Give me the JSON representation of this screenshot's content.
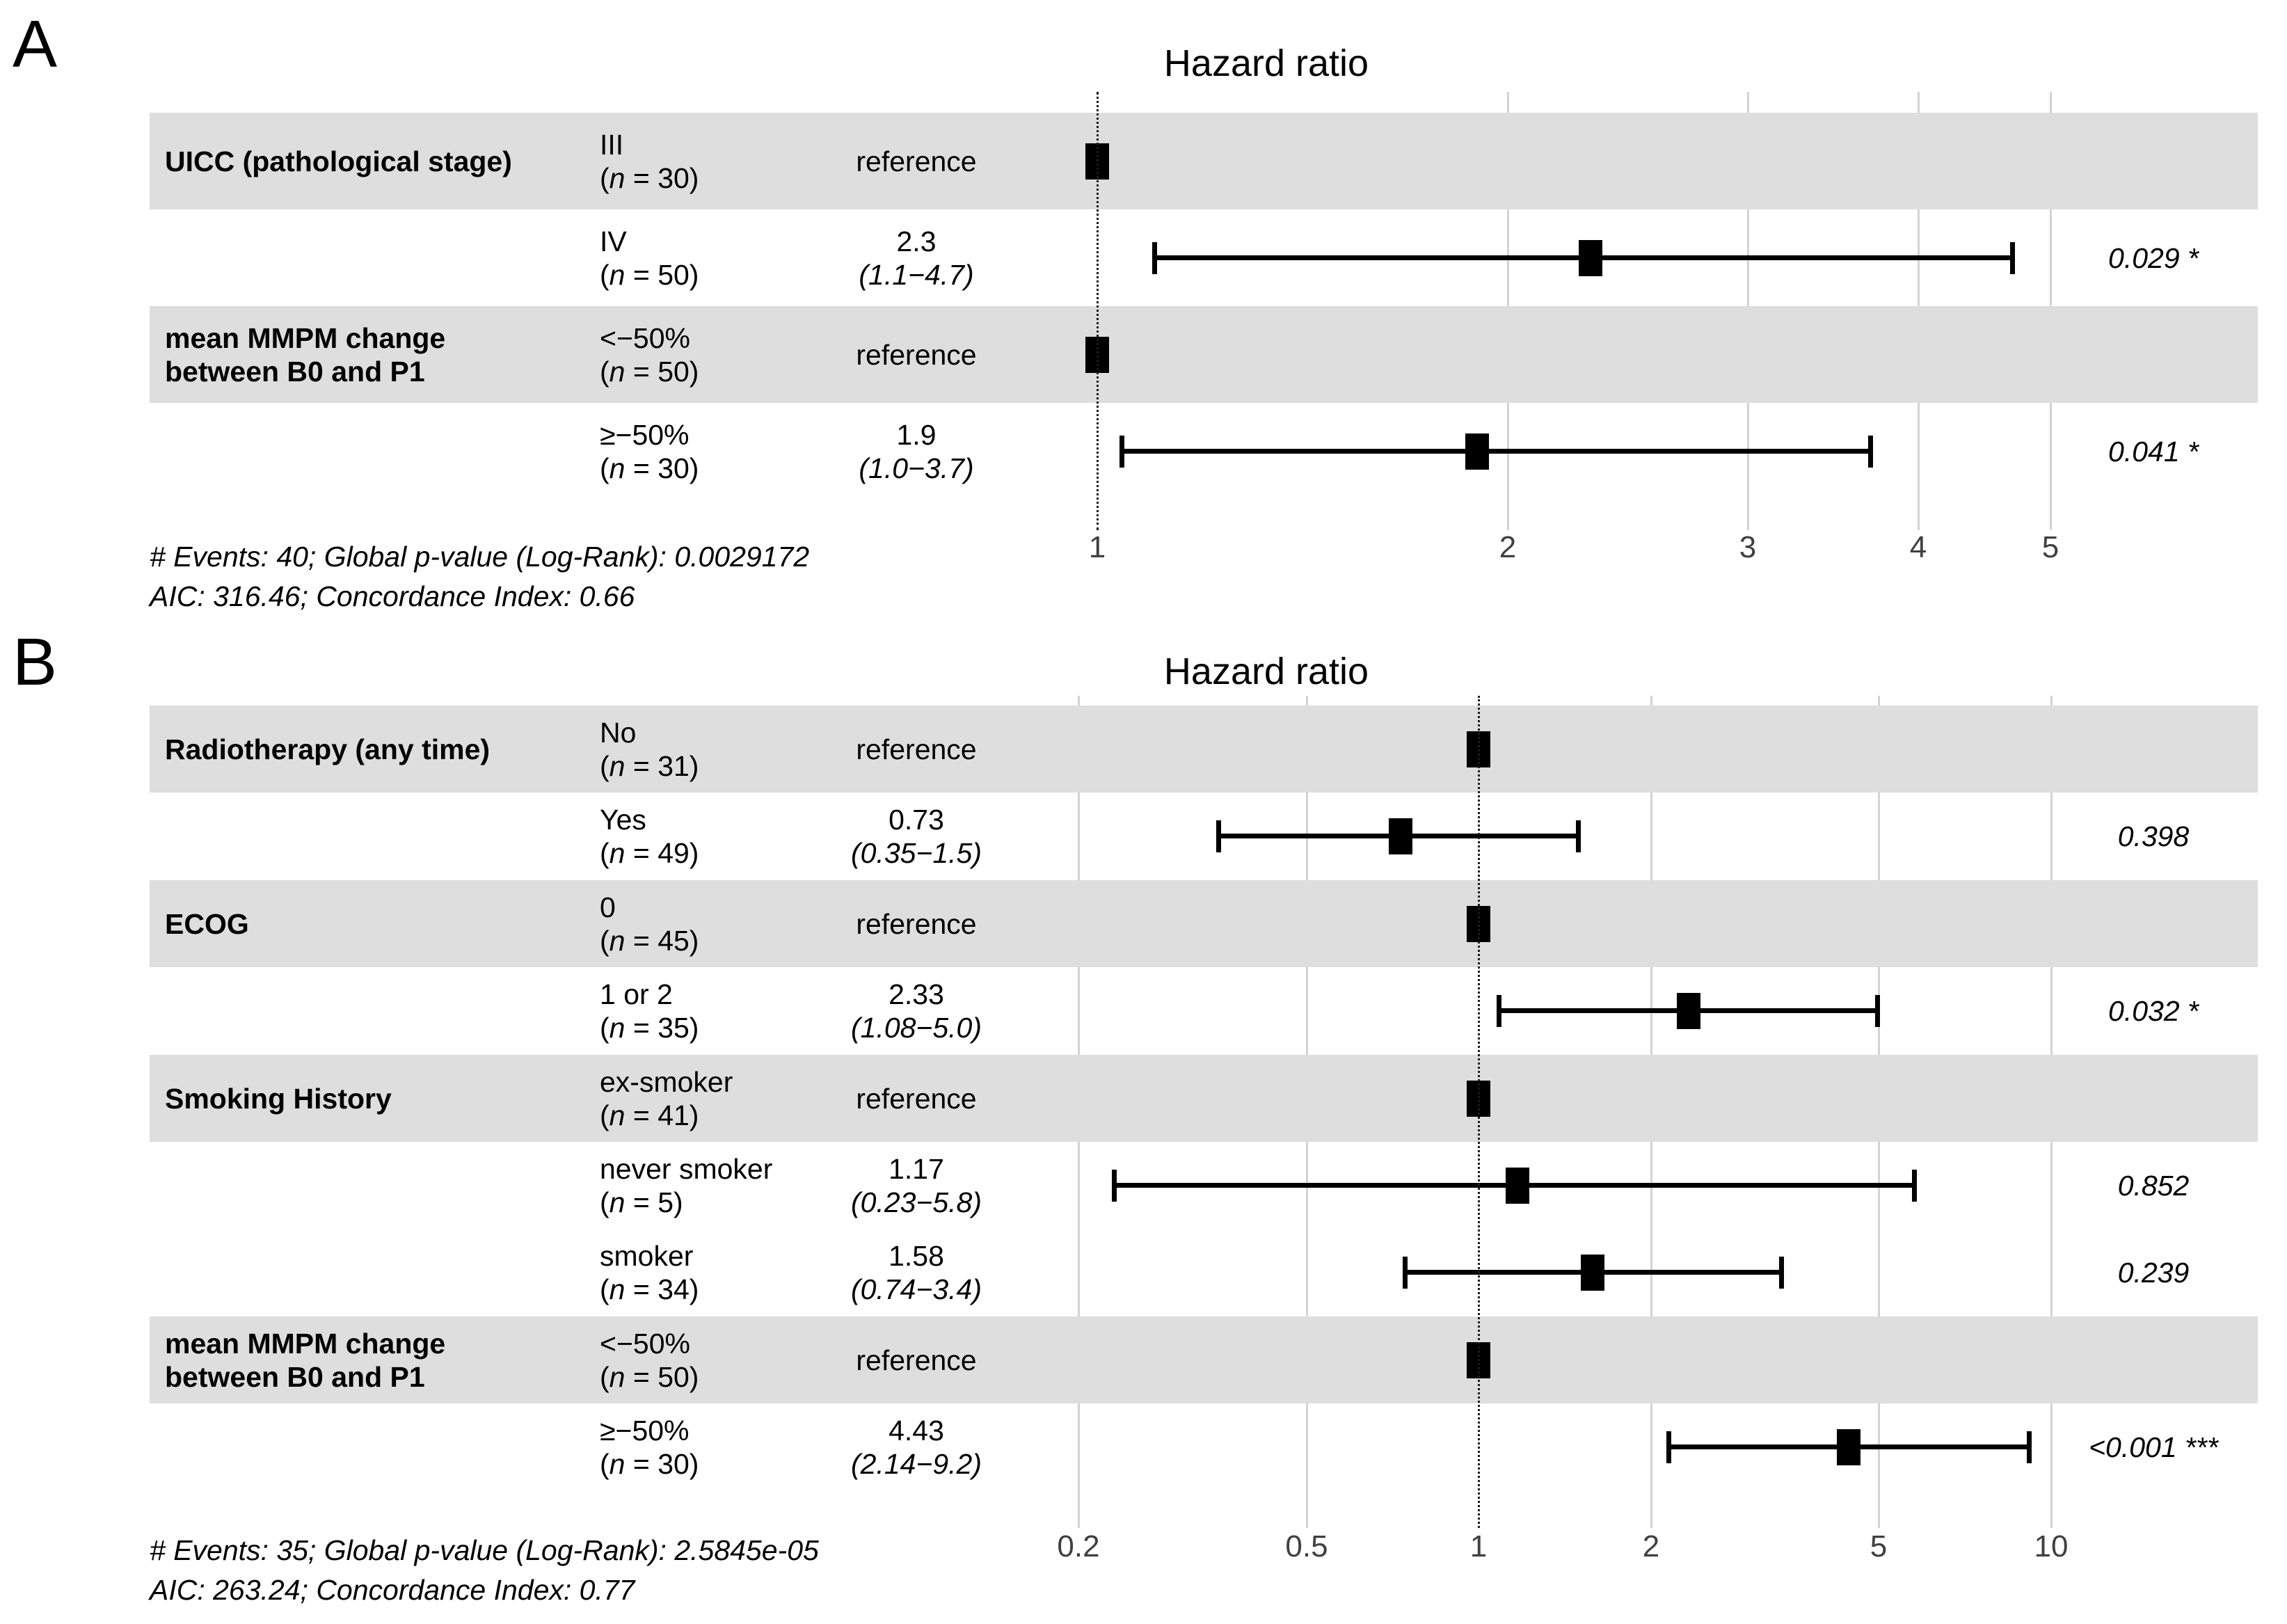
{
  "figure": {
    "background": "#ffffff",
    "stripe_color": "#dedede",
    "gridline_color": "#d3d3d3",
    "marker_color": "#000000",
    "axis_text_color": "#404040"
  },
  "chart_data": [
    {
      "panel_label": "A",
      "type": "forest",
      "title": "Hazard ratio",
      "x_scale": "log10",
      "x_domain": [
        0.861,
        5.45
      ],
      "reference_line": 1,
      "x_ticks": [
        {
          "value": 1,
          "label": "1"
        },
        {
          "value": 2,
          "label": "2"
        },
        {
          "value": 3,
          "label": "3"
        },
        {
          "value": 4,
          "label": "4"
        },
        {
          "value": 5,
          "label": "5"
        }
      ],
      "rows": [
        {
          "variable_lines": [
            "UICC (pathological stage)"
          ],
          "level": "III",
          "n": 30,
          "estimate_label": "reference",
          "hr": 1.0,
          "reference": true,
          "stripe": true
        },
        {
          "variable_lines": [],
          "level": "IV",
          "n": 50,
          "estimate_label": "2.3",
          "ci_label": "(1.1−4.7)",
          "hr": 2.3,
          "ci_low": 1.1,
          "ci_high": 4.7,
          "p_label": "0.029 *",
          "reference": false,
          "stripe": false
        },
        {
          "variable_lines": [
            "mean MMPM change",
            "between B0 and P1"
          ],
          "level": "<−50%",
          "n": 50,
          "estimate_label": "reference",
          "hr": 1.0,
          "reference": true,
          "stripe": true
        },
        {
          "variable_lines": [],
          "level": "≥−50%",
          "n": 30,
          "estimate_label": "1.9",
          "ci_label": "(1.0−3.7)",
          "hr": 1.9,
          "ci_low": 1.04,
          "ci_high": 3.7,
          "p_label": "0.041 *",
          "reference": false,
          "stripe": false
        }
      ],
      "footnotes": [
        "# Events: 40; Global p-value (Log-Rank): 0.0029172",
        "AIC: 316.46; Concordance Index: 0.66"
      ]
    },
    {
      "panel_label": "B",
      "type": "forest",
      "title": "Hazard ratio",
      "x_scale": "log10",
      "x_domain": [
        0.151,
        12.24
      ],
      "reference_line": 1,
      "x_ticks": [
        {
          "value": 0.2,
          "label": "0.2"
        },
        {
          "value": 0.5,
          "label": "0.5"
        },
        {
          "value": 1,
          "label": "1"
        },
        {
          "value": 2,
          "label": "2"
        },
        {
          "value": 5,
          "label": "5"
        },
        {
          "value": 10,
          "label": "10"
        }
      ],
      "rows": [
        {
          "variable_lines": [
            "Radiotherapy (any time)"
          ],
          "level": "No",
          "n": 31,
          "estimate_label": "reference",
          "hr": 1.0,
          "reference": true,
          "stripe": true
        },
        {
          "variable_lines": [],
          "level": "Yes",
          "n": 49,
          "estimate_label": "0.73",
          "ci_label": "(0.35−1.5)",
          "hr": 0.73,
          "ci_low": 0.35,
          "ci_high": 1.5,
          "p_label": "0.398",
          "reference": false,
          "stripe": false
        },
        {
          "variable_lines": [
            "ECOG"
          ],
          "level": "0",
          "n": 45,
          "estimate_label": "reference",
          "hr": 1.0,
          "reference": true,
          "stripe": true
        },
        {
          "variable_lines": [],
          "level": "1 or 2",
          "n": 35,
          "estimate_label": "2.33",
          "ci_label": "(1.08−5.0)",
          "hr": 2.33,
          "ci_low": 1.08,
          "ci_high": 5.0,
          "p_label": "0.032 *",
          "reference": false,
          "stripe": false
        },
        {
          "variable_lines": [
            "Smoking History"
          ],
          "level": "ex-smoker",
          "n": 41,
          "estimate_label": "reference",
          "hr": 1.0,
          "reference": true,
          "stripe": true
        },
        {
          "variable_lines": [],
          "level": "never smoker",
          "n": 5,
          "estimate_label": "1.17",
          "ci_label": "(0.23−5.8)",
          "hr": 1.17,
          "ci_low": 0.23,
          "ci_high": 5.8,
          "p_label": "0.852",
          "reference": false,
          "stripe": false
        },
        {
          "variable_lines": [],
          "level": "smoker",
          "n": 34,
          "estimate_label": "1.58",
          "ci_label": "(0.74−3.4)",
          "hr": 1.58,
          "ci_low": 0.74,
          "ci_high": 3.4,
          "p_label": "0.239",
          "reference": false,
          "stripe": false
        },
        {
          "variable_lines": [
            "mean MMPM change",
            "between B0 and P1"
          ],
          "level": "<−50%",
          "n": 50,
          "estimate_label": "reference",
          "hr": 1.0,
          "reference": true,
          "stripe": true
        },
        {
          "variable_lines": [],
          "level": "≥−50%",
          "n": 30,
          "estimate_label": "4.43",
          "ci_label": "(2.14−9.2)",
          "hr": 4.43,
          "ci_low": 2.14,
          "ci_high": 9.2,
          "p_label": "<0.001 ***",
          "reference": false,
          "stripe": false
        }
      ],
      "footnotes": [
        "# Events: 35; Global p-value (Log-Rank): 2.5845e-05",
        "AIC: 263.24; Concordance Index: 0.77"
      ]
    }
  ]
}
